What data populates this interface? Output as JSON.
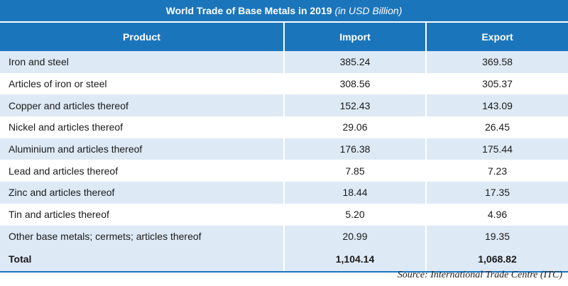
{
  "title": {
    "main": "World Trade of Base Metals in 2019",
    "sub": "(in USD Billion)"
  },
  "table": {
    "headers": [
      "Product",
      "Import",
      "Export"
    ],
    "rows": [
      {
        "product": "Iron and steel",
        "import": "385.24",
        "export": "369.58"
      },
      {
        "product": "Articles of iron or steel",
        "import": "308.56",
        "export": "305.37"
      },
      {
        "product": "Copper and articles thereof",
        "import": "152.43",
        "export": "143.09"
      },
      {
        "product": "Nickel and articles thereof",
        "import": "29.06",
        "export": "26.45"
      },
      {
        "product": "Aluminium and articles thereof",
        "import": "176.38",
        "export": "175.44"
      },
      {
        "product": "Lead and articles thereof",
        "import": "7.85",
        "export": "7.23"
      },
      {
        "product": "Zinc and articles thereof",
        "import": "18.44",
        "export": "17.35"
      },
      {
        "product": "Tin and articles thereof",
        "import": "5.20",
        "export": "4.96"
      },
      {
        "product": "Other base metals; cermets; articles thereof",
        "import": "20.99",
        "export": "19.35"
      }
    ],
    "total": {
      "product": "Total",
      "import": "1,104.14",
      "export": "1,068.82"
    }
  },
  "source": "Source: International Trade Centre (ITC)",
  "colors": {
    "header_bg": "#1b75bb",
    "stripe_bg": "#dde9f5"
  }
}
